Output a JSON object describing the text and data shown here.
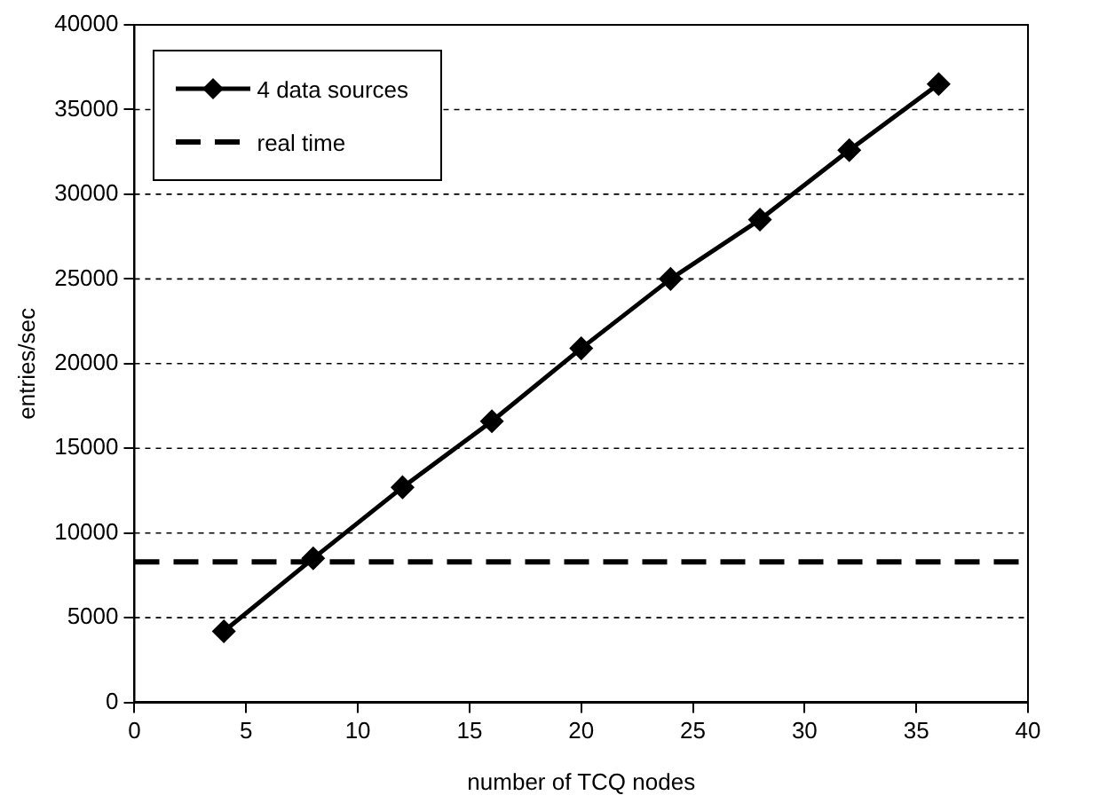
{
  "chart_data": {
    "type": "line",
    "xlabel": "number of TCQ nodes",
    "ylabel": "entries/sec",
    "x": [
      4,
      8,
      12,
      16,
      20,
      24,
      28,
      32,
      36
    ],
    "series": [
      {
        "name": "4 data sources",
        "color": "#000000",
        "values": [
          4200,
          8500,
          12700,
          16600,
          20900,
          25000,
          28500,
          32600,
          36500
        ],
        "marker": "diamond",
        "line_style": "solid"
      },
      {
        "name": "real time",
        "color": "#000000",
        "x": [
          0,
          40
        ],
        "values": [
          8300,
          8300
        ],
        "marker": "none",
        "line_style": "dashed"
      }
    ],
    "xlim": [
      0,
      40
    ],
    "xticks": [
      0,
      5,
      10,
      15,
      20,
      25,
      30,
      35,
      40
    ],
    "ylim": [
      0,
      40000
    ],
    "yticks": [
      0,
      5000,
      10000,
      15000,
      20000,
      25000,
      30000,
      35000,
      40000
    ],
    "grid": "y",
    "legend": "top left"
  }
}
